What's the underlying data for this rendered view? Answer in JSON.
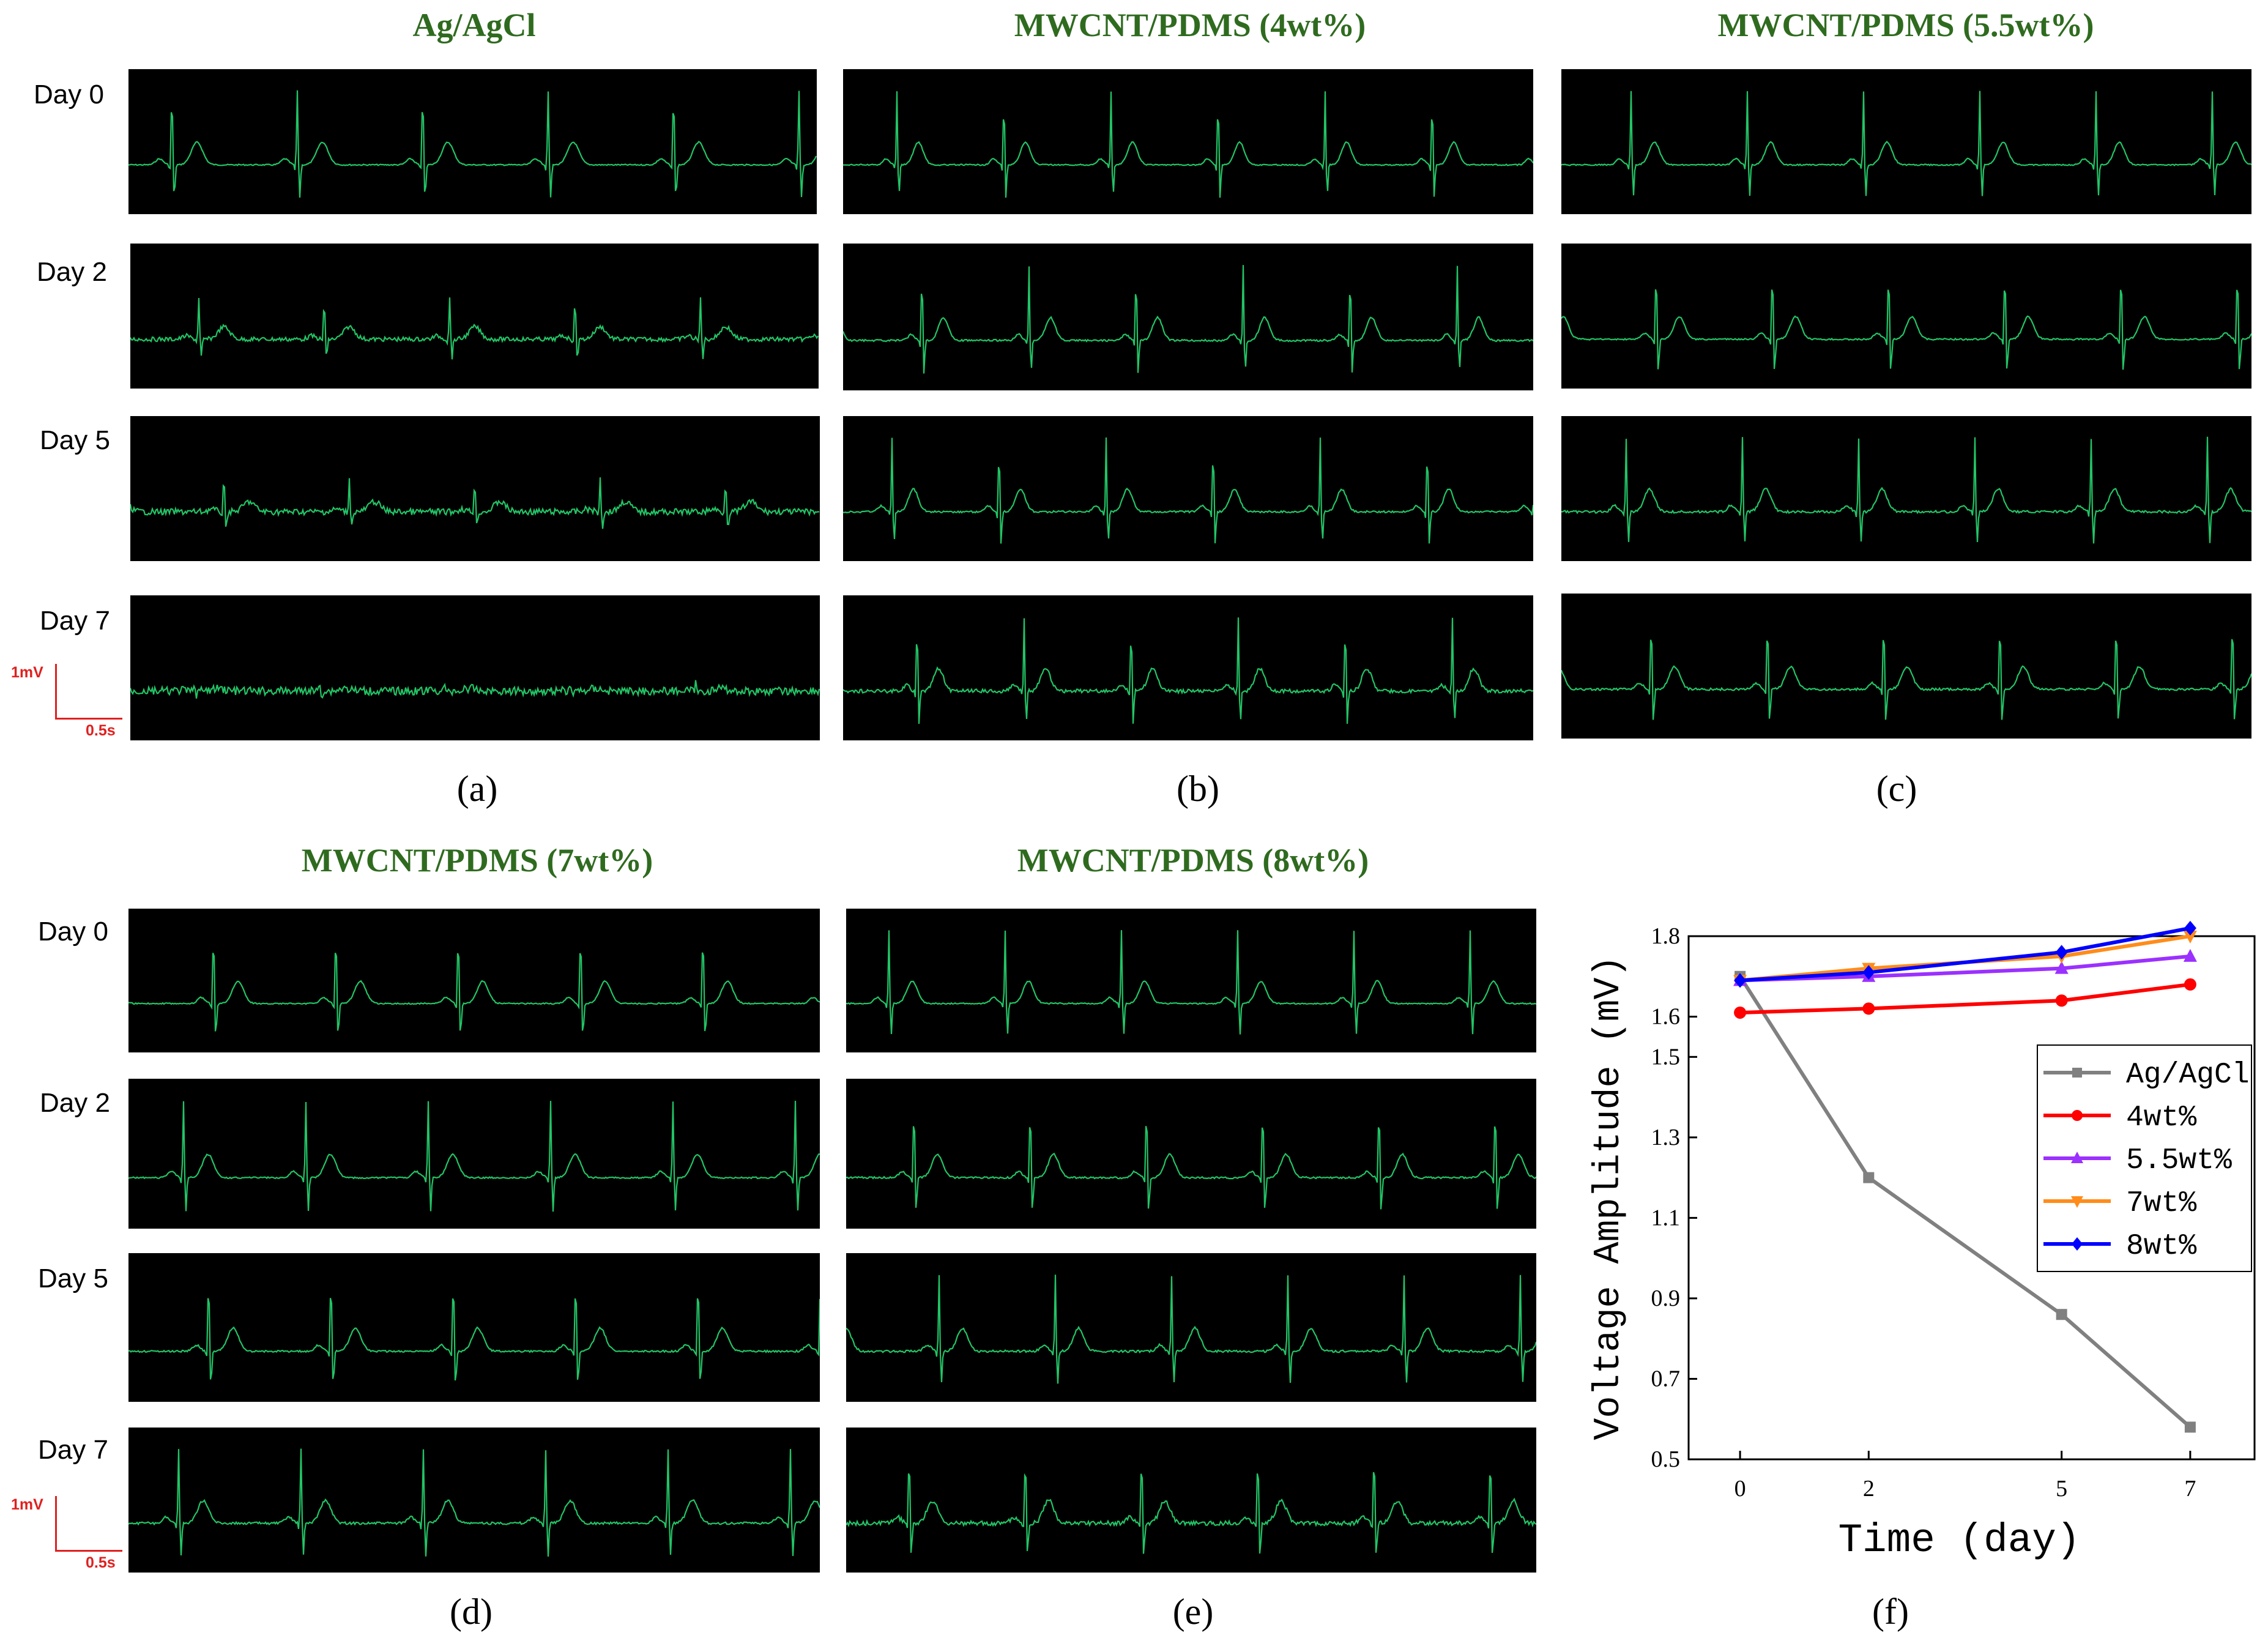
{
  "figure": {
    "columns": [
      {
        "key": "a",
        "title": "Ag/AgCl",
        "label": "(a)"
      },
      {
        "key": "b",
        "title": "MWCNT/PDMS (4wt%)",
        "label": "(b)"
      },
      {
        "key": "c",
        "title": "MWCNT/PDMS (5.5wt%)",
        "label": "(c)"
      },
      {
        "key": "d",
        "title": "MWCNT/PDMS (7wt%)",
        "label": "(d)"
      },
      {
        "key": "e",
        "title": "MWCNT/PDMS (8wt%)",
        "label": "(e)"
      }
    ],
    "days": [
      "Day 0",
      "Day 2",
      "Day 5",
      "Day 7"
    ],
    "scale_bar": {
      "voltage": "1mV",
      "time": "0.5s"
    },
    "trace_color": "#22c466",
    "background_color": "#000000"
  },
  "chart_data": {
    "type": "line",
    "label": "(f)",
    "xlabel": "Time (day)",
    "ylabel": "Voltage Amplitude (mV)",
    "x": [
      0,
      2,
      5,
      7
    ],
    "x_tick_labels": [
      "0",
      "2",
      "5",
      "7"
    ],
    "ylim": [
      0.5,
      1.8
    ],
    "y_ticks": [
      0.5,
      0.7,
      0.9,
      1.1,
      1.3,
      1.5,
      1.6,
      1.8
    ],
    "y_tick_labels": [
      "0.5",
      "0.7",
      "0.9",
      "1.1",
      "1.3",
      "1.5",
      "1.6",
      "1.8"
    ],
    "legend_position": "center-right",
    "series": [
      {
        "name": "Ag/AgCl",
        "color": "#808080",
        "marker": "square",
        "values": [
          1.7,
          1.2,
          0.86,
          0.58
        ]
      },
      {
        "name": "4wt%",
        "color": "#ff0000",
        "marker": "circle",
        "values": [
          1.61,
          1.62,
          1.64,
          1.68
        ]
      },
      {
        "name": "5.5wt%",
        "color": "#9b30ff",
        "marker": "triangle-up",
        "values": [
          1.69,
          1.7,
          1.72,
          1.75
        ]
      },
      {
        "name": "7wt%",
        "color": "#ff8c1a",
        "marker": "triangle-down",
        "values": [
          1.69,
          1.72,
          1.75,
          1.8
        ]
      },
      {
        "name": "8wt%",
        "color": "#0000ff",
        "marker": "diamond",
        "values": [
          1.69,
          1.71,
          1.76,
          1.82
        ]
      }
    ]
  }
}
